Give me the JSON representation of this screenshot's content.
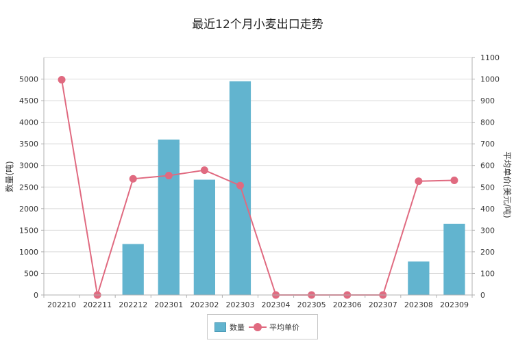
{
  "chart_data": {
    "type": "bar",
    "title": "最近12个月小麦出口走势",
    "ylabel": "数量(吨)",
    "y2label": "平均单价(美元/吨)",
    "categories": [
      "202210",
      "202211",
      "202212",
      "202301",
      "202302",
      "202303",
      "202304",
      "202305",
      "202306",
      "202307",
      "202308",
      "202309"
    ],
    "ylim": [
      0,
      5500
    ],
    "yticks": [
      0,
      500,
      1000,
      1500,
      2000,
      2500,
      3000,
      3500,
      4000,
      4500,
      5000
    ],
    "y2lim": [
      0,
      1100
    ],
    "y2ticks": [
      0,
      100,
      200,
      300,
      400,
      500,
      600,
      700,
      800,
      900,
      1000,
      1100
    ],
    "grid": true,
    "legend_position": "bottom",
    "series": [
      {
        "name": "数量",
        "type": "bar",
        "axis": "left",
        "color": "#62b4cf",
        "values": [
          0,
          0,
          1180,
          3600,
          2670,
          4950,
          0,
          0,
          0,
          0,
          775,
          1650
        ]
      },
      {
        "name": "平均单价",
        "type": "line",
        "axis": "right",
        "color": "#e06a80",
        "values": [
          997,
          0,
          538,
          553,
          578,
          507,
          0,
          0,
          0,
          0,
          527,
          531
        ]
      }
    ]
  }
}
